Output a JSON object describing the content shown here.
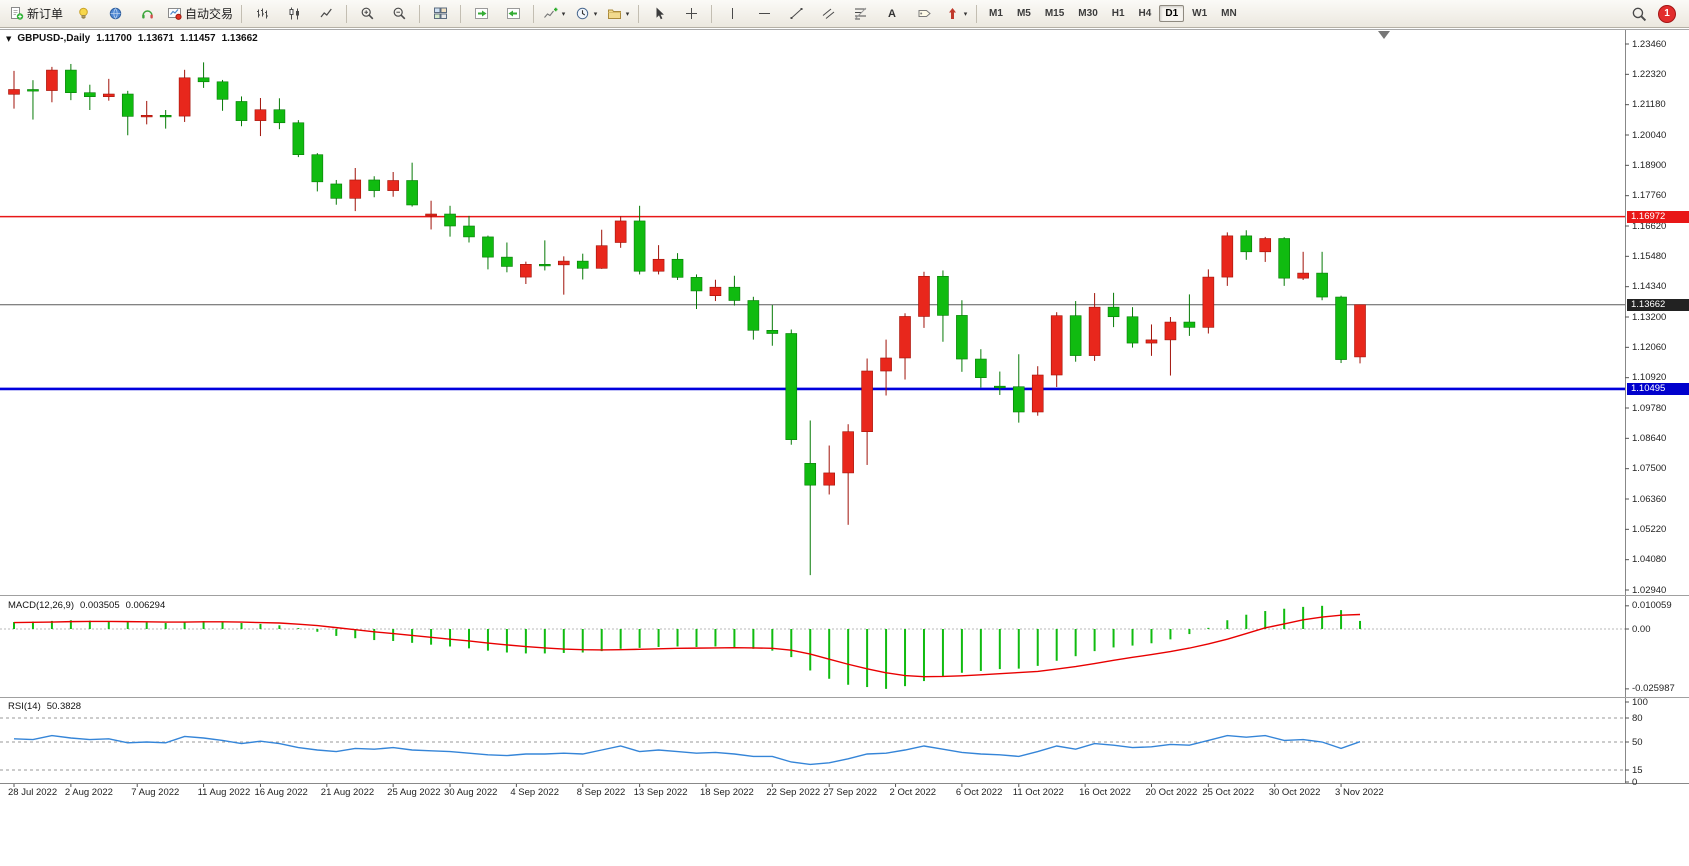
{
  "toolbar": {
    "new_order_label": "新订单",
    "autotrade_label": "自动交易",
    "chevron_glyph": "▾",
    "text_tool_glyph": "A",
    "timeframes": [
      "M1",
      "M5",
      "M15",
      "M30",
      "H1",
      "H4",
      "D1",
      "W1",
      "MN"
    ],
    "active_timeframe": "D1",
    "notification_count": "1"
  },
  "chart": {
    "info": {
      "collapse_glyph": "▼",
      "title": "GBPUSD-,Daily",
      "open": "1.11700",
      "high": "1.13671",
      "low": "1.11457",
      "close": "1.13662"
    },
    "price_axis_labels": [
      "1.23460",
      "1.22320",
      "1.21180",
      "1.20040",
      "1.18900",
      "1.17760",
      "1.16620",
      "1.15480",
      "1.14340",
      "1.13200",
      "1.12060",
      "1.10920",
      "1.09780",
      "1.08640",
      "1.07500",
      "1.06360",
      "1.05220",
      "1.04080",
      "1.02940"
    ],
    "hlines": [
      {
        "label": "1.16972",
        "price": 1.16972,
        "color": "#e81717",
        "tag_bg": "#e81717",
        "width": 1.4
      },
      {
        "label": "1.13662",
        "price": 1.13662,
        "color": "#5a5a5a",
        "tag_bg": "#222222",
        "width": 1
      },
      {
        "label": "1.10495",
        "price": 1.10495,
        "color": "#0000dd",
        "tag_bg": "#0000cc",
        "width": 2.6
      }
    ],
    "date_axis_labels": [
      {
        "text": "28 Jul 2022",
        "i": 0
      },
      {
        "text": "2 Aug 2022",
        "i": 3
      },
      {
        "text": "7 Aug 2022",
        "i": 6.5
      },
      {
        "text": "11 Aug 2022",
        "i": 10
      },
      {
        "text": "16 Aug 2022",
        "i": 13
      },
      {
        "text": "21 Aug 2022",
        "i": 16.5
      },
      {
        "text": "25 Aug 2022",
        "i": 20
      },
      {
        "text": "30 Aug 2022",
        "i": 23
      },
      {
        "text": "4 Sep 2022",
        "i": 26.5
      },
      {
        "text": "8 Sep 2022",
        "i": 30
      },
      {
        "text": "13 Sep 2022",
        "i": 33
      },
      {
        "text": "18 Sep 2022",
        "i": 36.5
      },
      {
        "text": "22 Sep 2022",
        "i": 40
      },
      {
        "text": "27 Sep 2022",
        "i": 43
      },
      {
        "text": "2 Oct 2022",
        "i": 46.5
      },
      {
        "text": "6 Oct 2022",
        "i": 50
      },
      {
        "text": "11 Oct 2022",
        "i": 53
      },
      {
        "text": "16 Oct 2022",
        "i": 56.5
      },
      {
        "text": "20 Oct 2022",
        "i": 60
      },
      {
        "text": "25 Oct 2022",
        "i": 63
      },
      {
        "text": "30 Oct 2022",
        "i": 66.5
      },
      {
        "text": "3 Nov 2022",
        "i": 70
      }
    ]
  },
  "chart_data": {
    "type": "candlestick",
    "symbol": "GBPUSD",
    "period": "Daily",
    "price_range": [
      1.0294,
      1.2346
    ],
    "up_color": "#e8271c",
    "down_color": "#10bb10",
    "ohlc": [
      [
        1.2157,
        1.2245,
        1.2103,
        1.2175
      ],
      [
        1.2175,
        1.221,
        1.2062,
        1.2171
      ],
      [
        1.2171,
        1.226,
        1.2127,
        1.2248
      ],
      [
        1.2248,
        1.2271,
        1.2135,
        1.2163
      ],
      [
        1.2163,
        1.2193,
        1.2098,
        1.2148
      ],
      [
        1.2148,
        1.2215,
        1.2133,
        1.2158
      ],
      [
        1.2158,
        1.217,
        1.2003,
        1.2074
      ],
      [
        1.2074,
        1.2132,
        1.2044,
        1.2078
      ],
      [
        1.2078,
        1.2098,
        1.2028,
        1.2075
      ],
      [
        1.2075,
        1.2249,
        1.2053,
        1.2219
      ],
      [
        1.2219,
        1.2277,
        1.2181,
        1.2204
      ],
      [
        1.2204,
        1.2211,
        1.2095,
        1.2138
      ],
      [
        1.213,
        1.2149,
        1.2037,
        1.2058
      ],
      [
        1.2058,
        1.2143,
        1.2,
        1.2099
      ],
      [
        1.2099,
        1.2142,
        1.2026,
        1.205
      ],
      [
        1.205,
        1.206,
        1.1921,
        1.193
      ],
      [
        1.193,
        1.1936,
        1.1792,
        1.1828
      ],
      [
        1.182,
        1.1835,
        1.1742,
        1.1766
      ],
      [
        1.1766,
        1.188,
        1.1718,
        1.1835
      ],
      [
        1.1835,
        1.1849,
        1.177,
        1.1795
      ],
      [
        1.1795,
        1.1865,
        1.1772,
        1.1833
      ],
      [
        1.1833,
        1.19,
        1.1735,
        1.1741
      ],
      [
        1.17,
        1.1757,
        1.1649,
        1.1707
      ],
      [
        1.1707,
        1.1738,
        1.1622,
        1.1662
      ],
      [
        1.1662,
        1.17,
        1.16,
        1.1621
      ],
      [
        1.1621,
        1.1626,
        1.1499,
        1.1545
      ],
      [
        1.1545,
        1.16,
        1.1488,
        1.151
      ],
      [
        1.147,
        1.1528,
        1.1444,
        1.1518
      ],
      [
        1.1518,
        1.1608,
        1.1495,
        1.1516
      ],
      [
        1.1516,
        1.1548,
        1.1404,
        1.153
      ],
      [
        1.153,
        1.1558,
        1.1461,
        1.1503
      ],
      [
        1.1503,
        1.1648,
        1.1501,
        1.1588
      ],
      [
        1.16,
        1.1699,
        1.158,
        1.1681
      ],
      [
        1.1681,
        1.1738,
        1.148,
        1.1492
      ],
      [
        1.1492,
        1.159,
        1.148,
        1.1537
      ],
      [
        1.1537,
        1.156,
        1.1459,
        1.1469
      ],
      [
        1.1469,
        1.148,
        1.135,
        1.1418
      ],
      [
        1.14,
        1.146,
        1.138,
        1.1432
      ],
      [
        1.1432,
        1.1475,
        1.1363,
        1.1382
      ],
      [
        1.1382,
        1.1396,
        1.1235,
        1.127
      ],
      [
        1.127,
        1.1365,
        1.1212,
        1.1258
      ],
      [
        1.1258,
        1.1273,
        1.084,
        1.0859
      ],
      [
        1.077,
        1.0931,
        1.035,
        1.0688
      ],
      [
        1.0688,
        1.0837,
        1.0653,
        1.0734
      ],
      [
        1.0734,
        1.0917,
        1.0539,
        1.0889
      ],
      [
        1.0889,
        1.1164,
        1.0764,
        1.1117
      ],
      [
        1.1117,
        1.1235,
        1.1025,
        1.1166
      ],
      [
        1.1166,
        1.1334,
        1.1085,
        1.1322
      ],
      [
        1.1322,
        1.149,
        1.1279,
        1.1473
      ],
      [
        1.1473,
        1.1495,
        1.1227,
        1.1326
      ],
      [
        1.1326,
        1.1383,
        1.1114,
        1.1162
      ],
      [
        1.1162,
        1.1199,
        1.1055,
        1.1092
      ],
      [
        1.106,
        1.1115,
        1.1027,
        1.1058
      ],
      [
        1.1058,
        1.118,
        1.0923,
        1.0963
      ],
      [
        1.0963,
        1.1135,
        1.0949,
        1.1102
      ],
      [
        1.1102,
        1.1338,
        1.1057,
        1.1325
      ],
      [
        1.1325,
        1.138,
        1.1152,
        1.1175
      ],
      [
        1.1175,
        1.141,
        1.1155,
        1.1357
      ],
      [
        1.1357,
        1.1411,
        1.1282,
        1.1321
      ],
      [
        1.1321,
        1.1357,
        1.1205,
        1.1222
      ],
      [
        1.1222,
        1.1292,
        1.1174,
        1.1234
      ],
      [
        1.1234,
        1.132,
        1.11,
        1.1301
      ],
      [
        1.1301,
        1.1405,
        1.1249,
        1.1281
      ],
      [
        1.1281,
        1.1499,
        1.1258,
        1.147
      ],
      [
        1.147,
        1.1638,
        1.1437,
        1.1625
      ],
      [
        1.1625,
        1.1646,
        1.1535,
        1.1565
      ],
      [
        1.1565,
        1.1621,
        1.1527,
        1.1615
      ],
      [
        1.1615,
        1.162,
        1.1437,
        1.1466
      ],
      [
        1.1466,
        1.1565,
        1.1459,
        1.1485
      ],
      [
        1.1485,
        1.1565,
        1.1383,
        1.1395
      ],
      [
        1.1395,
        1.14,
        1.1147,
        1.116
      ],
      [
        1.117,
        1.13671,
        1.11457,
        1.13662
      ]
    ],
    "macd": {
      "name": "MACD(12,26,9)",
      "current_main": "0.003505",
      "current_signal": "0.006294",
      "axis_labels": [
        "0.010059",
        "0.00",
        "-0.025987"
      ],
      "histogram_color": "#10bb10",
      "signal_color": "#e80000",
      "main": [
        0.003,
        0.0032,
        0.0035,
        0.0038,
        0.0036,
        0.0034,
        0.003,
        0.0028,
        0.0026,
        0.003,
        0.0034,
        0.0032,
        0.0026,
        0.0022,
        0.0016,
        0.0004,
        -0.0012,
        -0.003,
        -0.004,
        -0.0048,
        -0.0052,
        -0.006,
        -0.0068,
        -0.0076,
        -0.0084,
        -0.0094,
        -0.0102,
        -0.0106,
        -0.0106,
        -0.0104,
        -0.0102,
        -0.0096,
        -0.0086,
        -0.0082,
        -0.0078,
        -0.0076,
        -0.0078,
        -0.0076,
        -0.0078,
        -0.0086,
        -0.0094,
        -0.0122,
        -0.018,
        -0.0216,
        -0.0242,
        -0.0252,
        -0.025987,
        -0.0248,
        -0.0226,
        -0.0204,
        -0.019,
        -0.0182,
        -0.0174,
        -0.0172,
        -0.016,
        -0.0138,
        -0.0118,
        -0.0096,
        -0.008,
        -0.0072,
        -0.0062,
        -0.0045,
        -0.0022,
        0.0005,
        0.0038,
        0.0062,
        0.0078,
        0.0088,
        0.0096,
        0.010059,
        0.0082,
        0.003505
      ],
      "signal": [
        0.0028,
        0.0029,
        0.003,
        0.0032,
        0.0033,
        0.0033,
        0.0032,
        0.0031,
        0.003,
        0.003,
        0.0031,
        0.0031,
        0.003,
        0.0028,
        0.0026,
        0.0021,
        0.0015,
        0.0006,
        -0.0003,
        -0.0012,
        -0.002,
        -0.0028,
        -0.0036,
        -0.0044,
        -0.0052,
        -0.0061,
        -0.0069,
        -0.0076,
        -0.0082,
        -0.0087,
        -0.009,
        -0.0091,
        -0.009,
        -0.0088,
        -0.0086,
        -0.0084,
        -0.0083,
        -0.0082,
        -0.0081,
        -0.0082,
        -0.0084,
        -0.0092,
        -0.0109,
        -0.0131,
        -0.0153,
        -0.0173,
        -0.019,
        -0.0202,
        -0.0207,
        -0.0206,
        -0.0203,
        -0.0199,
        -0.0194,
        -0.0189,
        -0.0184,
        -0.0174,
        -0.0163,
        -0.015,
        -0.0136,
        -0.0123,
        -0.0111,
        -0.0098,
        -0.0083,
        -0.0065,
        -0.0044,
        -0.002,
        0.0005,
        0.0022,
        0.004,
        0.0052,
        0.006,
        0.006294
      ]
    },
    "rsi": {
      "name": "RSI(14)",
      "current": "50.3828",
      "axis_labels": [
        "100",
        "80",
        "50",
        "15",
        "0"
      ],
      "levels": [
        80,
        50,
        15
      ],
      "line_color": "#3585d8",
      "values": [
        54,
        53,
        58,
        55,
        53,
        54,
        49,
        50,
        49,
        57,
        55,
        52,
        48,
        51,
        48,
        43,
        40,
        38,
        42,
        41,
        43,
        40,
        39,
        38,
        36,
        34,
        33,
        35,
        35,
        36,
        35,
        40,
        45,
        38,
        40,
        38,
        36,
        37,
        35,
        32,
        32,
        25,
        22,
        24,
        29,
        35,
        36,
        40,
        45,
        41,
        37,
        35,
        34,
        32,
        38,
        45,
        41,
        48,
        46,
        43,
        44,
        47,
        46,
        52,
        58,
        56,
        58,
        52,
        53,
        50,
        42,
        50.38
      ]
    }
  }
}
